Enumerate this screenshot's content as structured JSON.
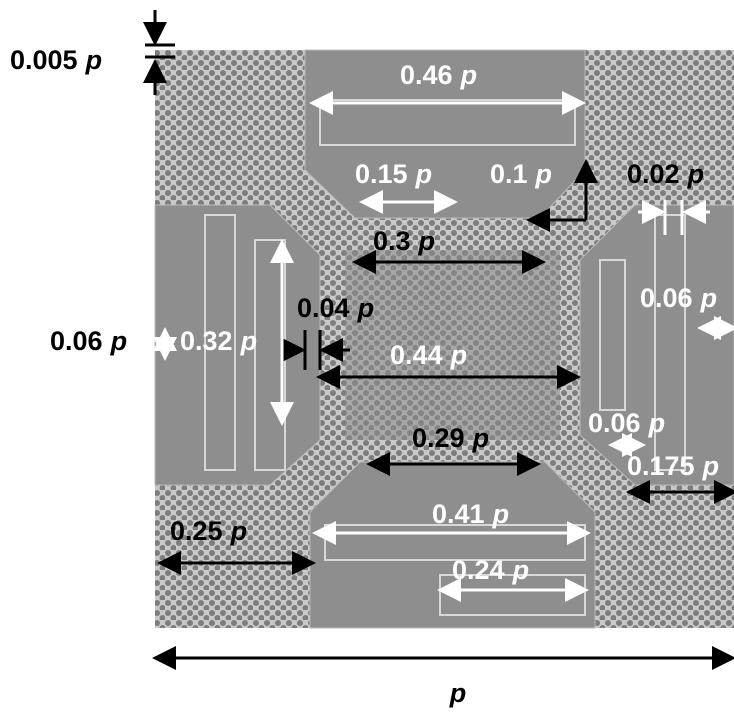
{
  "annotations": [
    {
      "number": "0.005",
      "unit": "p"
    },
    {
      "number": "0.46",
      "unit": "p"
    },
    {
      "number": "0.15",
      "unit": "p"
    },
    {
      "number": "0.1",
      "unit": "p"
    },
    {
      "number": "0.02",
      "unit": "p"
    },
    {
      "number": "0.3",
      "unit": "p"
    },
    {
      "number": "0.04",
      "unit": "p"
    },
    {
      "number": "0.06",
      "unit": "p"
    },
    {
      "number": "0.32",
      "unit": "p"
    },
    {
      "number": "0.44",
      "unit": "p"
    },
    {
      "number": "0.06",
      "unit": "p"
    },
    {
      "number": "0.06",
      "unit": "p"
    },
    {
      "number": "0.29",
      "unit": "p"
    },
    {
      "number": "0.175",
      "unit": "p"
    },
    {
      "number": "0.41",
      "unit": "p"
    },
    {
      "number": "0.25",
      "unit": "p"
    },
    {
      "number": "0.24",
      "unit": "p"
    }
  ],
  "period_label": "p"
}
